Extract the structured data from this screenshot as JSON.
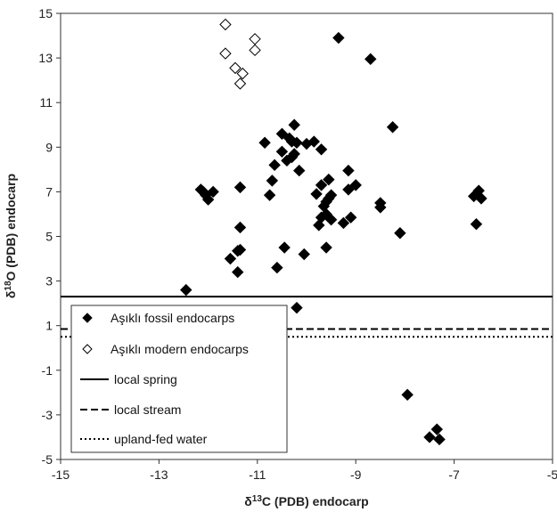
{
  "chart_data": {
    "type": "scatter",
    "title": "",
    "xlabel": {
      "prefix": "δ",
      "sup": "13",
      "main": "C (PDB) endocarp"
    },
    "ylabel": {
      "prefix": "δ",
      "sup": "18",
      "main": "O (PDB) endocarp"
    },
    "xlim": [
      -15,
      -5
    ],
    "ylim": [
      -5,
      15
    ],
    "xticks": [
      -15,
      -13,
      -11,
      -9,
      -7,
      -5
    ],
    "yticks": [
      -5,
      -3,
      -1,
      1,
      3,
      5,
      7,
      9,
      11,
      13,
      15
    ],
    "grid": false,
    "legend": "bottom-left",
    "series": [
      {
        "name": "Aşıklı fossil endocarps",
        "marker": "diamond-filled",
        "points": [
          [
            -12.45,
            2.6
          ],
          [
            -12.15,
            7.1
          ],
          [
            -12.1,
            7.0
          ],
          [
            -12.05,
            6.85
          ],
          [
            -12.0,
            6.65
          ],
          [
            -11.9,
            7.0
          ],
          [
            -11.55,
            4.0
          ],
          [
            -11.4,
            4.35
          ],
          [
            -11.4,
            3.4
          ],
          [
            -11.35,
            5.4
          ],
          [
            -11.35,
            4.4
          ],
          [
            -11.35,
            7.2
          ],
          [
            -10.85,
            9.2
          ],
          [
            -10.75,
            6.85
          ],
          [
            -10.7,
            7.5
          ],
          [
            -10.65,
            8.2
          ],
          [
            -10.6,
            3.6
          ],
          [
            -10.5,
            9.6
          ],
          [
            -10.5,
            8.8
          ],
          [
            -10.45,
            4.5
          ],
          [
            -10.4,
            8.4
          ],
          [
            -10.35,
            9.4
          ],
          [
            -10.3,
            9.25
          ],
          [
            -10.3,
            8.55
          ],
          [
            -10.25,
            8.7
          ],
          [
            -10.25,
            10.0
          ],
          [
            -10.2,
            9.2
          ],
          [
            -10.2,
            1.8
          ],
          [
            -10.15,
            7.95
          ],
          [
            -10.05,
            4.2
          ],
          [
            -10.0,
            9.15
          ],
          [
            -9.85,
            9.25
          ],
          [
            -9.8,
            6.9
          ],
          [
            -9.75,
            5.5
          ],
          [
            -9.7,
            7.3
          ],
          [
            -9.7,
            5.85
          ],
          [
            -9.7,
            8.9
          ],
          [
            -9.65,
            6.35
          ],
          [
            -9.6,
            6.55
          ],
          [
            -9.6,
            6.0
          ],
          [
            -9.6,
            4.5
          ],
          [
            -9.55,
            7.55
          ],
          [
            -9.55,
            6.7
          ],
          [
            -9.5,
            6.85
          ],
          [
            -9.5,
            5.75
          ],
          [
            -9.35,
            13.9
          ],
          [
            -9.25,
            5.6
          ],
          [
            -9.15,
            7.95
          ],
          [
            -9.15,
            7.1
          ],
          [
            -9.1,
            5.85
          ],
          [
            -9.0,
            7.3
          ],
          [
            -8.7,
            12.95
          ],
          [
            -8.5,
            6.5
          ],
          [
            -8.5,
            6.3
          ],
          [
            -8.25,
            9.9
          ],
          [
            -8.1,
            5.15
          ],
          [
            -7.95,
            -2.1
          ],
          [
            -7.5,
            -4.0
          ],
          [
            -7.35,
            -3.65
          ],
          [
            -7.3,
            -4.1
          ],
          [
            -6.6,
            6.8
          ],
          [
            -6.55,
            6.9
          ],
          [
            -6.55,
            5.55
          ],
          [
            -6.5,
            7.05
          ],
          [
            -6.45,
            6.7
          ]
        ]
      },
      {
        "name": "Aşıklı modern endocarps",
        "marker": "diamond-open",
        "points": [
          [
            -11.65,
            14.5
          ],
          [
            -11.65,
            13.2
          ],
          [
            -11.45,
            12.55
          ],
          [
            -11.3,
            12.3
          ],
          [
            -11.35,
            11.85
          ],
          [
            -11.05,
            13.85
          ],
          [
            -11.05,
            13.35
          ]
        ]
      }
    ],
    "reference_lines": [
      {
        "name": "local spring",
        "y": 2.3,
        "style": "solid"
      },
      {
        "name": "local stream",
        "y": 0.85,
        "style": "dashed"
      },
      {
        "name": "upland-fed water",
        "y": 0.5,
        "style": "dotted"
      }
    ]
  }
}
